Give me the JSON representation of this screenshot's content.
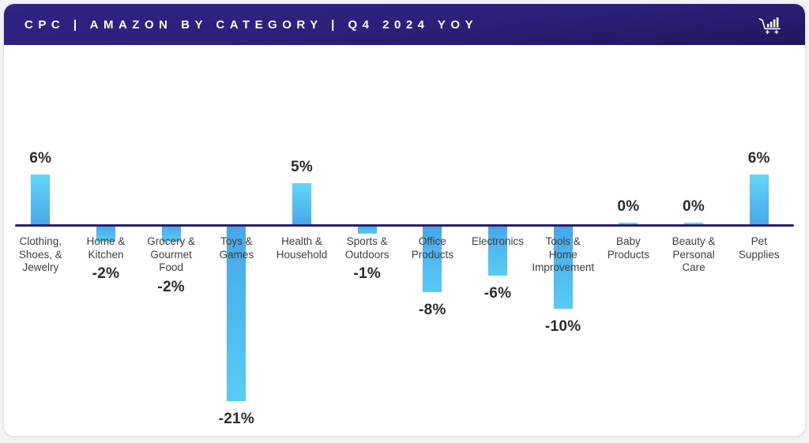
{
  "header": {
    "title": "CPC | AMAZON BY CATEGORY | Q4 2024 YOY",
    "icon": "cart-with-bars-icon"
  },
  "colors": {
    "page_bg": "#F3F3F5",
    "card_bg": "#FFFFFF",
    "header_gradient_top": "#2F2487",
    "header_gradient_bottom": "#20165F",
    "axis": "#2A2070",
    "bar_tip_light": "#63D6F8",
    "bar_base_dark": "#46A7EA",
    "value_text": "#2B2B2B",
    "category_text": "#3F3F3F"
  },
  "chart_data": {
    "type": "bar",
    "title": "CPC | AMAZON BY CATEGORY | Q4 2024 YOY",
    "unit": "%",
    "orientation": "vertical",
    "baseline": 0,
    "ylim": [
      -21,
      6
    ],
    "grid": "off",
    "y_axis_ticks": "none",
    "legend": "none",
    "bar_style": "cyan gradient, light tip to darker blue at baseline",
    "categories": [
      "Clothing, Shoes, & Jewelry",
      "Home & Kitchen",
      "Grocery & Gourmet Food",
      "Toys & Games",
      "Health & Household",
      "Sports & Outdoors",
      "Office Products",
      "Electronics",
      "Tools & Home Improvement",
      "Baby Products",
      "Beauty & Personal Care",
      "Pet Supplies"
    ],
    "label_lines": [
      [
        "Clothing,",
        "Shoes, &",
        "Jewelry"
      ],
      [
        "Home &",
        "Kitchen"
      ],
      [
        "Grocery &",
        "Gourmet",
        "Food"
      ],
      [
        "Toys &",
        "Games"
      ],
      [
        "Health &",
        "Household"
      ],
      [
        "Sports &",
        "Outdoors"
      ],
      [
        "Office",
        "Products"
      ],
      [
        "Electronics"
      ],
      [
        "Tools &",
        "Home",
        "Improvement"
      ],
      [
        "Baby",
        "Products"
      ],
      [
        "Beauty &",
        "Personal",
        "Care"
      ],
      [
        "Pet",
        "Supplies"
      ]
    ],
    "values": [
      6,
      -2,
      -2,
      -21,
      5,
      -1,
      -8,
      -6,
      -10,
      0,
      0,
      6
    ],
    "value_labels": [
      "6%",
      "-2%",
      "-2%",
      "-21%",
      "5%",
      "-1%",
      "-8%",
      "-6%",
      "-10%",
      "0%",
      "0%",
      "6%"
    ]
  }
}
